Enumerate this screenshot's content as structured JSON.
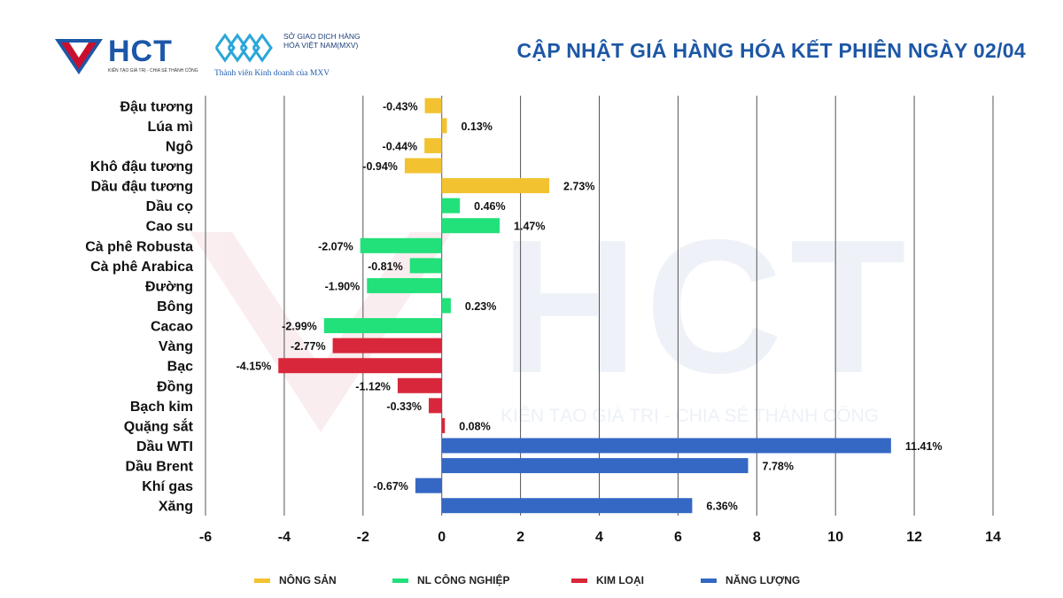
{
  "header": {
    "title": "CẬP NHẬT GIÁ HÀNG HÓA KẾT PHIÊN NGÀY 02/04",
    "hct_logo_text": "HCT",
    "hct_slogan": "KIẾN TẠO GIÁ TRỊ - CHIA SẺ THÀNH CÔNG",
    "mxv_name": "SỞ GIAO DỊCH HÀNG HÓA VIỆT NAM(MXV)",
    "mxv_member": "Thành viên Kinh doanh của MXV"
  },
  "watermark": {
    "text": "HCT",
    "slogan": "KIẾN TẠO GIÁ TRỊ - CHIA SẺ THÀNH CÔNG"
  },
  "colors": {
    "nong_san": "#f2c230",
    "nl_cong_nghiep": "#22e07a",
    "kim_loai": "#d8273a",
    "nang_luong": "#3568c4",
    "title_blue": "#1d57a6"
  },
  "chart_data": {
    "type": "bar",
    "orientation": "horizontal",
    "title": "CẬP NHẬT GIÁ HÀNG HÓA KẾT PHIÊN NGÀY 02/04",
    "xlim": [
      -6,
      14
    ],
    "xticks": [
      -6,
      -4,
      -2,
      0,
      2,
      4,
      6,
      8,
      10,
      12,
      14
    ],
    "grid": true,
    "legend_position": "bottom",
    "groups": [
      {
        "name": "NÔNG SẢN",
        "color": "#f2c230"
      },
      {
        "name": "NL CÔNG NGHIỆP",
        "color": "#22e07a"
      },
      {
        "name": "KIM LOẠI",
        "color": "#d8273a"
      },
      {
        "name": "NĂNG LƯỢNG",
        "color": "#3568c4"
      }
    ],
    "items": [
      {
        "name": "Đậu tương",
        "value": -0.43,
        "label": "-0.43%",
        "group": 0
      },
      {
        "name": "Lúa mì",
        "value": 0.13,
        "label": "0.13%",
        "group": 0
      },
      {
        "name": "Ngô",
        "value": -0.44,
        "label": "-0.44%",
        "group": 0
      },
      {
        "name": "Khô đậu tương",
        "value": -0.94,
        "label": "-0.94%",
        "group": 0
      },
      {
        "name": "Dầu đậu tương",
        "value": 2.73,
        "label": "2.73%",
        "group": 0
      },
      {
        "name": "Dầu cọ",
        "value": 0.46,
        "label": "0.46%",
        "group": 1
      },
      {
        "name": "Cao su",
        "value": 1.47,
        "label": "1.47%",
        "group": 1
      },
      {
        "name": "Cà phê Robusta",
        "value": -2.07,
        "label": "-2.07%",
        "group": 1
      },
      {
        "name": "Cà phê Arabica",
        "value": -0.81,
        "label": "-0.81%",
        "group": 1
      },
      {
        "name": "Đường",
        "value": -1.9,
        "label": "-1.90%",
        "group": 1
      },
      {
        "name": "Bông",
        "value": 0.23,
        "label": "0.23%",
        "group": 1
      },
      {
        "name": "Cacao",
        "value": -2.99,
        "label": "-2.99%",
        "group": 1
      },
      {
        "name": "Vàng",
        "value": -2.77,
        "label": "-2.77%",
        "group": 2
      },
      {
        "name": "Bạc",
        "value": -4.15,
        "label": "-4.15%",
        "group": 2
      },
      {
        "name": "Đồng",
        "value": -1.12,
        "label": "-1.12%",
        "group": 2
      },
      {
        "name": "Bạch kim",
        "value": -0.33,
        "label": "-0.33%",
        "group": 2
      },
      {
        "name": "Quặng sắt",
        "value": 0.08,
        "label": "0.08%",
        "group": 2
      },
      {
        "name": "Dầu WTI",
        "value": 11.41,
        "label": "11.41%",
        "group": 3
      },
      {
        "name": "Dầu Brent",
        "value": 7.78,
        "label": "7.78%",
        "group": 3
      },
      {
        "name": "Khí gas",
        "value": -0.67,
        "label": "-0.67%",
        "group": 3
      },
      {
        "name": "Xăng",
        "value": 6.36,
        "label": "6.36%",
        "group": 3
      }
    ]
  }
}
